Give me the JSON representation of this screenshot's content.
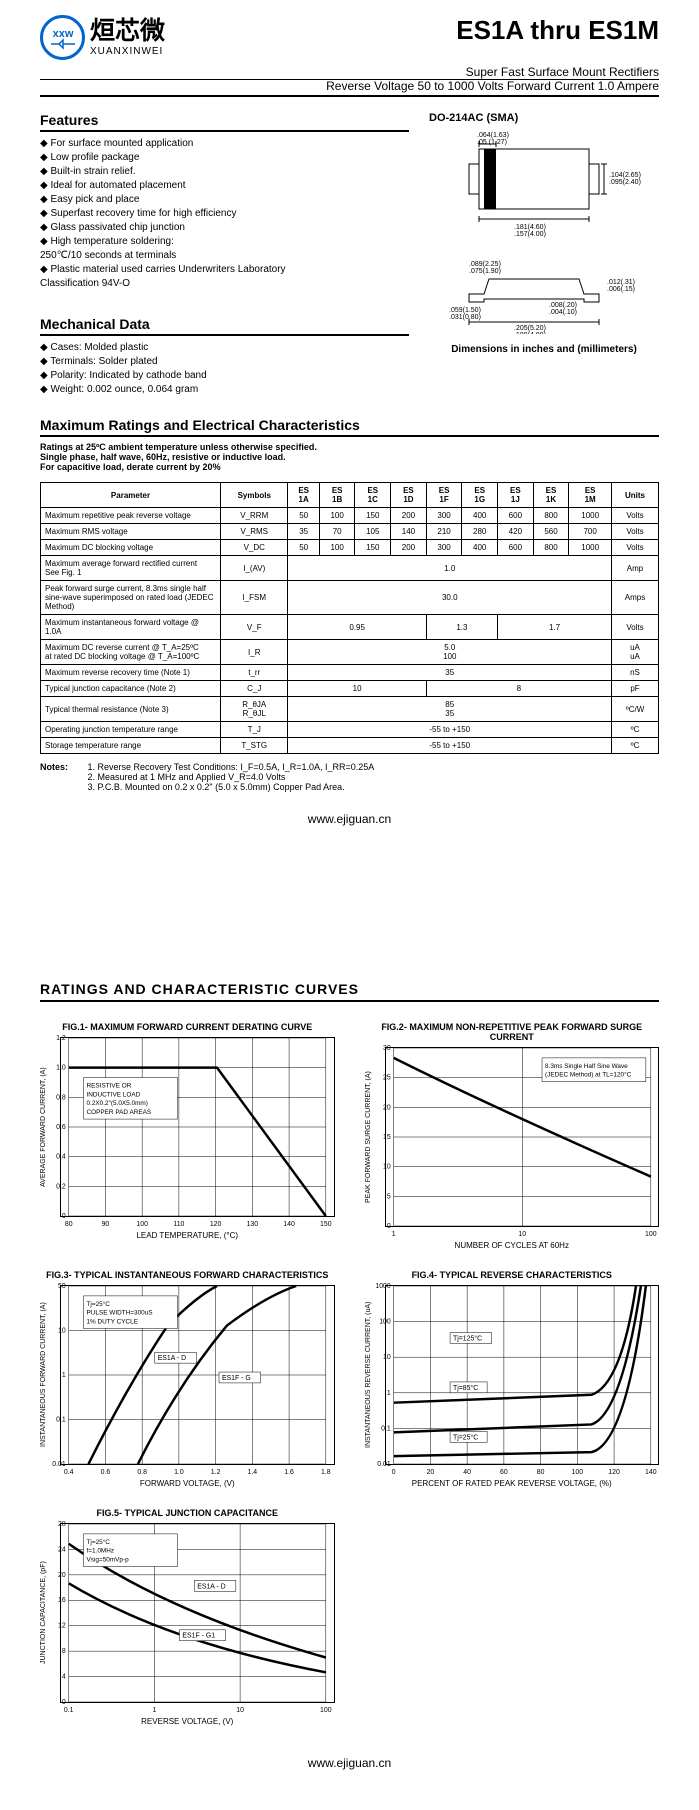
{
  "header": {
    "logo_cn": "烜芯微",
    "logo_en": "XUANXINWEI",
    "logo_mark": "xxw",
    "title": "ES1A thru ES1M",
    "subtitle1": "Super Fast Surface Mount Rectifiers",
    "subtitle2": "Reverse Voltage 50 to 1000 Volts    Forward Current 1.0 Ampere"
  },
  "features": {
    "heading": "Features",
    "items": [
      "For surface mounted application",
      "Low profile package",
      "Built-in strain relief.",
      "Ideal for automated placement",
      "Easy pick and place",
      "Superfast recovery time for high efficiency",
      "Glass passivated chip junction",
      "High temperature soldering:\n   250℃/10 seconds at terminals",
      "Plastic material used carries Underwriters Laboratory\n   Classification 94V-O"
    ]
  },
  "mechanical": {
    "heading": "Mechanical Data",
    "items": [
      "Cases: Molded plastic",
      "Terminals: Solder plated",
      "Polarity: Indicated by cathode band",
      "Weight: 0.002 ounce, 0.064 gram"
    ]
  },
  "package": {
    "name": "DO-214AC (SMA)",
    "dims_top": {
      "d1": ".064(1.63)\n.05 (1.27)",
      "d2": ".104(2.65)\n.095(2.40)",
      "d3": ".181(4.60)\n.157(4.00)"
    },
    "dims_side": {
      "d1": ".089(2.25)\n.075(1.90)",
      "d2": ".012(.31)\n.006(.15)",
      "d3": ".008(.20)\n.004(.10)",
      "d4": ".059(1.50)\n.031(0.80)",
      "d5": ".205(5.20)\n.189(4.80)"
    },
    "dim_note": "Dimensions in inches and (millimeters)"
  },
  "ratings": {
    "heading": "Maximum Ratings and Electrical Characteristics",
    "conditions": [
      "Ratings at 25ºC ambient temperature unless otherwise specified.",
      "Single phase, half wave, 60Hz, resistive or inductive load.",
      "For capacitive load, derate current by 20%"
    ],
    "col_headers": [
      "Parameter",
      "Symbols",
      "ES\n1A",
      "ES\n1B",
      "ES\n1C",
      "ES\n1D",
      "ES\n1F",
      "ES\n1G",
      "ES\n1J",
      "ES\n1K",
      "ES\n1M",
      "Units"
    ],
    "rows": [
      {
        "param": "Maximum repetitive peak reverse voltage",
        "sym": "V_RRM",
        "vals": [
          "50",
          "100",
          "150",
          "200",
          "300",
          "400",
          "600",
          "800",
          "1000"
        ],
        "unit": "Volts"
      },
      {
        "param": "Maximum RMS voltage",
        "sym": "V_RMS",
        "vals": [
          "35",
          "70",
          "105",
          "140",
          "210",
          "280",
          "420",
          "560",
          "700"
        ],
        "unit": "Volts"
      },
      {
        "param": "Maximum DC blocking voltage",
        "sym": "V_DC",
        "vals": [
          "50",
          "100",
          "150",
          "200",
          "300",
          "400",
          "600",
          "800",
          "1000"
        ],
        "unit": "Volts"
      },
      {
        "param": "Maximum average forward rectified current\nSee Fig. 1",
        "sym": "I_(AV)",
        "span": "1.0",
        "unit": "Amp"
      },
      {
        "param": "Peak forward surge current, 8.3ms single half sine-wave superimposed on rated load (JEDEC Method)",
        "sym": "I_FSM",
        "span": "30.0",
        "unit": "Amps"
      },
      {
        "param": "Maximum instantaneous forward voltage @ 1.0A",
        "sym": "V_F",
        "groups": [
          {
            "span": 4,
            "val": "0.95"
          },
          {
            "span": 2,
            "val": "1.3"
          },
          {
            "span": 3,
            "val": "1.7"
          }
        ],
        "unit": "Volts"
      },
      {
        "param": "Maximum DC reverse current           @ T_A=25ºC\nat rated DC blocking voltage            @ T_A=100ºC",
        "sym": "I_R",
        "span": "5.0\n100",
        "unit": "uA\nuA"
      },
      {
        "param": "Maximum reverse recovery time (Note 1)",
        "sym": "t_rr",
        "span": "35",
        "unit": "nS"
      },
      {
        "param": "Typical junction capacitance (Note 2)",
        "sym": "C_J",
        "groups": [
          {
            "span": 4,
            "val": "10"
          },
          {
            "span": 5,
            "val": "8"
          }
        ],
        "unit": "pF"
      },
      {
        "param": "Typical thermal resistance (Note 3)",
        "sym": "R_θJA\nR_θJL",
        "span": "85\n35",
        "unit": "ºC/W"
      },
      {
        "param": "Operating junction temperature range",
        "sym": "T_J",
        "span": "-55 to +150",
        "unit": "ºC"
      },
      {
        "param": "Storage temperature range",
        "sym": "T_STG",
        "span": "-55 to +150",
        "unit": "ºC"
      }
    ],
    "notes_label": "Notes:",
    "notes": [
      "1. Reverse Recovery Test Conditions: I_F=0.5A, I_R=1.0A, I_RR=0.25A",
      "2. Measured at 1 MHz and Applied V_R=4.0 Volts",
      "3. P.C.B. Mounted on 0.2 x 0.2\" (5.0 x 5.0mm) Copper Pad Area."
    ]
  },
  "footer_url": "www.ejiguan.cn",
  "curves": {
    "heading": "RATINGS AND CHARACTERISTIC CURVES",
    "charts": [
      {
        "id": "fig1",
        "title": "FIG.1- MAXIMUM FORWARD CURRENT DERATING CURVE",
        "ylabel": "AVERAGE FORWARD CURRENT, (A)",
        "xlabel": "LEAD TEMPERATURE, (°C)",
        "yticks": [
          "0",
          "0.2",
          "0.4",
          "0.6",
          "0.8",
          "1.0",
          "1.2"
        ],
        "xlim": [
          80,
          150
        ],
        "xticks": [
          "80",
          "90",
          "100",
          "110",
          "120",
          "130",
          "140",
          "150"
        ],
        "annotation": "RESISTIVE OR\nINDUCTIVE LOAD\n0.2X0.2\"(5.0X5.0mm)\nCOPPER PAD AREAS",
        "scale": "linear"
      },
      {
        "id": "fig2",
        "title": "FIG.2- MAXIMUM NON-REPETITIVE PEAK FORWARD SURGE CURRENT",
        "ylabel": "PEAK FORWARD SURGE CURRENT, (A)",
        "xlabel": "NUMBER OF CYCLES AT 60Hz",
        "yticks": [
          "0",
          "5",
          "10",
          "15",
          "20",
          "25",
          "30"
        ],
        "xticks": [
          "1",
          "10",
          "100"
        ],
        "annotation": "8.3ms Single Half Sine Wave\n(JEDEC Method) at TL=120°C",
        "xscale": "log"
      },
      {
        "id": "fig3",
        "title": "FIG.3- TYPICAL INSTANTANEOUS FORWARD CHARACTERISTICS",
        "ylabel": "INSTANTANEOUS FORWARD CURRENT, (A)",
        "xlabel": "FORWARD VOLTAGE, (V)",
        "yticks": [
          "0.01",
          "0.1",
          "1",
          "10",
          "50"
        ],
        "xticks": [
          "0.4",
          "0.6",
          "0.8",
          "1.0",
          "1.2",
          "1.4",
          "1.6",
          "1.8"
        ],
        "annotation": "Tj=25°C\nPULSE WIDTH=300uS\n1% DUTY CYCLE",
        "curves": [
          "ES1A - D",
          "ES1F - G"
        ],
        "yscale": "log"
      },
      {
        "id": "fig4",
        "title": "FIG.4- TYPICAL REVERSE CHARACTERISTICS",
        "ylabel": "INSTANTANEOUS REVERSE CURRENT, (uA)",
        "xlabel": "PERCENT OF RATED PEAK REVERSE VOLTAGE, (%)",
        "yticks": [
          "0.01",
          "0.1",
          "1",
          "10",
          "100",
          "1000"
        ],
        "xticks": [
          "0",
          "20",
          "40",
          "60",
          "80",
          "100",
          "120",
          "140"
        ],
        "curves": [
          "Tj=125°C",
          "Tj=85°C",
          "Tj=25°C"
        ],
        "yscale": "log"
      },
      {
        "id": "fig5",
        "title": "FIG.5- TYPICAL JUNCTION CAPACITANCE",
        "ylabel": "JUNCTION CAPACITANCE, (pF)",
        "xlabel": "REVERSE VOLTAGE, (V)",
        "yticks": [
          "0",
          "4",
          "8",
          "12",
          "16",
          "20",
          "24",
          "28"
        ],
        "xticks": [
          "0.1",
          "1",
          "10",
          "100"
        ],
        "annotation": "Tj=25°C\nf=1.0MHz\nVsig=50mVp-p",
        "curves": [
          "ES1A - D",
          "ES1F - G1"
        ],
        "xscale": "log"
      }
    ]
  },
  "colors": {
    "brand": "#0066cc",
    "text": "#000000",
    "border": "#000000",
    "bg": "#ffffff"
  }
}
